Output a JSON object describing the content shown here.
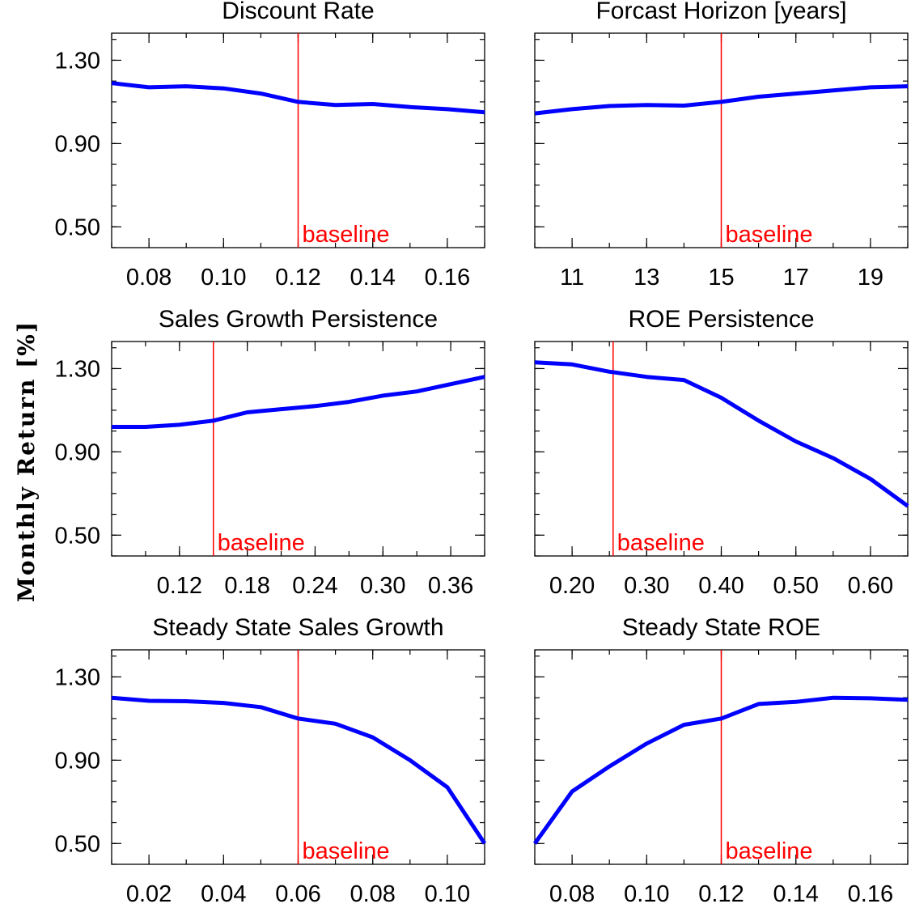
{
  "colors": {
    "series": "#0000ff",
    "baseline": "#ff0000",
    "axis": "#000000"
  },
  "ylabel": "Monthly Return [%]",
  "chart_data": [
    {
      "type": "line",
      "title": "Discount Rate",
      "xlim": [
        0.07,
        0.17
      ],
      "ylim": [
        0.4,
        1.43
      ],
      "xticks": [
        0.08,
        0.1,
        0.12,
        0.14,
        0.16
      ],
      "xtick_labels": [
        "0.08",
        "0.10",
        "0.12",
        "0.14",
        "0.16"
      ],
      "yticks": [
        0.5,
        0.9,
        1.3
      ],
      "ytick_labels": [
        "0.50",
        "0.90",
        "1.30"
      ],
      "show_ytick_labels": true,
      "baseline": {
        "x": 0.12,
        "label": "baseline"
      },
      "x": [
        0.07,
        0.08,
        0.09,
        0.1,
        0.11,
        0.12,
        0.13,
        0.14,
        0.15,
        0.16,
        0.17
      ],
      "y": [
        1.19,
        1.17,
        1.175,
        1.165,
        1.14,
        1.1,
        1.085,
        1.09,
        1.075,
        1.065,
        1.05
      ]
    },
    {
      "type": "line",
      "title": "Forcast Horizon [years]",
      "xlim": [
        10,
        20
      ],
      "ylim": [
        0.4,
        1.43
      ],
      "xticks": [
        11,
        13,
        15,
        17,
        19
      ],
      "xtick_labels": [
        "11",
        "13",
        "15",
        "17",
        "19"
      ],
      "yticks": [
        0.5,
        0.9,
        1.3
      ],
      "ytick_labels": [
        "0.50",
        "0.90",
        "1.30"
      ],
      "show_ytick_labels": false,
      "baseline": {
        "x": 15,
        "label": "baseline"
      },
      "x": [
        10,
        11,
        12,
        13,
        14,
        15,
        16,
        17,
        18,
        19,
        20
      ],
      "y": [
        1.045,
        1.065,
        1.08,
        1.085,
        1.082,
        1.1,
        1.125,
        1.14,
        1.155,
        1.17,
        1.175
      ]
    },
    {
      "type": "line",
      "title": "Sales Growth Persistence",
      "xlim": [
        0.06,
        0.39
      ],
      "ylim": [
        0.4,
        1.43
      ],
      "xticks": [
        0.12,
        0.18,
        0.24,
        0.3,
        0.36
      ],
      "xtick_labels": [
        "0.12",
        "0.18",
        "0.24",
        "0.30",
        "0.36"
      ],
      "yticks": [
        0.5,
        0.9,
        1.3
      ],
      "ytick_labels": [
        "0.50",
        "0.90",
        "1.30"
      ],
      "show_ytick_labels": true,
      "baseline": {
        "x": 0.15,
        "label": "baseline"
      },
      "x": [
        0.06,
        0.09,
        0.12,
        0.15,
        0.18,
        0.21,
        0.24,
        0.27,
        0.3,
        0.33,
        0.36,
        0.39
      ],
      "y": [
        1.02,
        1.02,
        1.03,
        1.05,
        1.09,
        1.105,
        1.12,
        1.14,
        1.17,
        1.19,
        1.225,
        1.26
      ]
    },
    {
      "type": "line",
      "title": "ROE Persistence",
      "xlim": [
        0.15,
        0.65
      ],
      "ylim": [
        0.4,
        1.43
      ],
      "xticks": [
        0.2,
        0.3,
        0.4,
        0.5,
        0.6
      ],
      "xtick_labels": [
        "0.20",
        "0.30",
        "0.40",
        "0.50",
        "0.60"
      ],
      "yticks": [
        0.5,
        0.9,
        1.3
      ],
      "ytick_labels": [
        "0.50",
        "0.90",
        "1.30"
      ],
      "show_ytick_labels": false,
      "baseline": {
        "x": 0.255,
        "label": "baseline"
      },
      "x": [
        0.15,
        0.2,
        0.25,
        0.3,
        0.35,
        0.4,
        0.45,
        0.5,
        0.55,
        0.6,
        0.65
      ],
      "y": [
        1.33,
        1.32,
        1.285,
        1.26,
        1.245,
        1.16,
        1.05,
        0.95,
        0.87,
        0.77,
        0.64
      ]
    },
    {
      "type": "line",
      "title": "Steady State Sales Growth",
      "xlim": [
        0.01,
        0.11
      ],
      "ylim": [
        0.4,
        1.43
      ],
      "xticks": [
        0.02,
        0.04,
        0.06,
        0.08,
        0.1
      ],
      "xtick_labels": [
        "0.02",
        "0.04",
        "0.06",
        "0.08",
        "0.10"
      ],
      "yticks": [
        0.5,
        0.9,
        1.3
      ],
      "ytick_labels": [
        "0.50",
        "0.90",
        "1.30"
      ],
      "show_ytick_labels": true,
      "baseline": {
        "x": 0.06,
        "label": "baseline"
      },
      "x": [
        0.01,
        0.02,
        0.03,
        0.04,
        0.05,
        0.06,
        0.07,
        0.08,
        0.09,
        0.1,
        0.11
      ],
      "y": [
        1.2,
        1.185,
        1.183,
        1.175,
        1.155,
        1.1,
        1.075,
        1.01,
        0.9,
        0.77,
        0.5
      ]
    },
    {
      "type": "line",
      "title": "Steady State ROE",
      "xlim": [
        0.07,
        0.17
      ],
      "ylim": [
        0.4,
        1.43
      ],
      "xticks": [
        0.08,
        0.1,
        0.12,
        0.14,
        0.16
      ],
      "xtick_labels": [
        "0.08",
        "0.10",
        "0.12",
        "0.14",
        "0.16"
      ],
      "yticks": [
        0.5,
        0.9,
        1.3
      ],
      "ytick_labels": [
        "0.50",
        "0.90",
        "1.30"
      ],
      "show_ytick_labels": false,
      "baseline": {
        "x": 0.12,
        "label": "baseline"
      },
      "x": [
        0.07,
        0.08,
        0.09,
        0.1,
        0.11,
        0.12,
        0.13,
        0.14,
        0.15,
        0.16,
        0.17
      ],
      "y": [
        0.5,
        0.75,
        0.87,
        0.98,
        1.07,
        1.1,
        1.17,
        1.18,
        1.2,
        1.197,
        1.19
      ]
    }
  ]
}
